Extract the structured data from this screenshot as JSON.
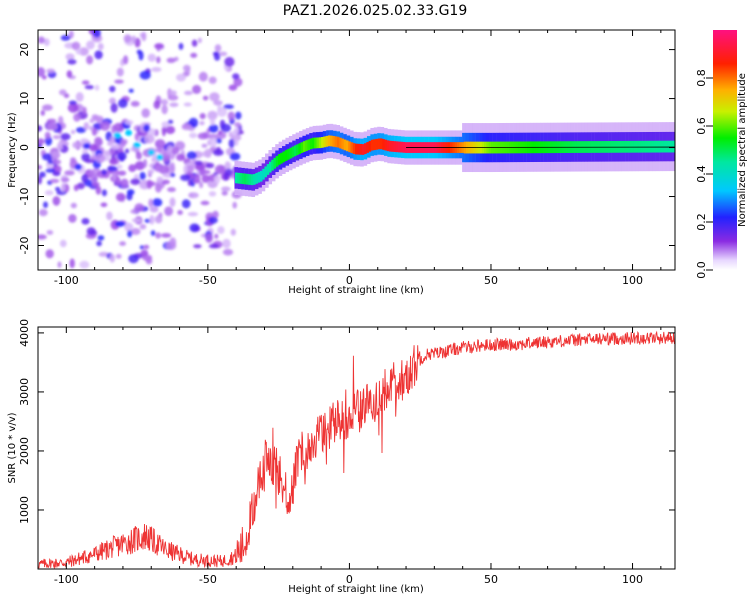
{
  "title": "PAZ1.2026.025.02.33.G19",
  "colors": {
    "snr_line": "#ee3333",
    "frame": "#000000"
  },
  "chart_data": [
    {
      "type": "heatmap",
      "title": "PAZ1.2026.025.02.33.G19",
      "xlabel": "Height of straight line (km)",
      "ylabel": "Frequency (Hz)",
      "xlim": [
        -110,
        115
      ],
      "ylim": [
        -25,
        24
      ],
      "xticks": [
        -100,
        -50,
        0,
        50,
        100
      ],
      "yticks": [
        20,
        10,
        0,
        -10,
        -20
      ],
      "xtick_labels": [
        "-100",
        "-50",
        "0",
        "50",
        "100"
      ],
      "ytick_labels": [
        "20",
        "10",
        "0",
        "-10",
        "-20"
      ],
      "colorbar": {
        "label": "Normalized spectral amplitude",
        "range": [
          0.0,
          1.0
        ],
        "ticks": [
          0.0,
          0.2,
          0.4,
          0.6,
          0.8
        ],
        "tick_labels": [
          "0.0",
          "0.2",
          "0.4",
          "0.6",
          "0.8"
        ],
        "colormap": "rainbow"
      },
      "ridge": {
        "x": [
          -40,
          -37,
          -34,
          -31,
          -28,
          -25,
          -22,
          -19,
          -16,
          -13,
          -10,
          -7,
          -4,
          -1,
          2,
          5,
          8,
          11,
          14,
          20,
          30,
          50,
          80,
          115
        ],
        "freq": [
          -6.2,
          -6.4,
          -6.6,
          -5.8,
          -4,
          -2.5,
          -1.5,
          -0.6,
          0.2,
          0.9,
          1,
          1.4,
          1.1,
          0.4,
          -0.3,
          -0.4,
          0.5,
          0.8,
          0.3,
          0,
          0,
          0,
          0.1,
          0.2
        ],
        "amp": [
          0.45,
          0.5,
          0.45,
          0.4,
          0.45,
          0.55,
          0.55,
          0.5,
          0.6,
          0.55,
          0.65,
          0.75,
          0.8,
          0.75,
          0.85,
          0.9,
          0.85,
          0.85,
          0.9,
          0.95,
          0.95,
          0.6,
          0.5,
          0.45
        ]
      }
    },
    {
      "type": "line",
      "xlabel": "Height of straight line (km)",
      "ylabel": "SNR (10 * v/v)",
      "xlim": [
        -110,
        115
      ],
      "ylim": [
        0,
        4100
      ],
      "xticks": [
        -100,
        -50,
        0,
        50,
        100
      ],
      "yticks": [
        1000,
        2000,
        3000,
        4000
      ],
      "xtick_labels": [
        "-100",
        "-50",
        "0",
        "50",
        "100"
      ],
      "ytick_labels": [
        "1000",
        "2000",
        "3000",
        "4000"
      ],
      "series": [
        {
          "name": "SNR",
          "color": "#ee3333",
          "x": [
            -110,
            -100,
            -90,
            -80,
            -72,
            -65,
            -55,
            -45,
            -40,
            -37,
            -35,
            -32,
            -30,
            -28,
            -26,
            -24,
            -22,
            -20,
            -18,
            -16,
            -14,
            -12,
            -10,
            -8,
            -6,
            -4,
            -2,
            0,
            2,
            4,
            6,
            8,
            10,
            12,
            14,
            16,
            18,
            20,
            22,
            24,
            26,
            28,
            30,
            35,
            40,
            45,
            50,
            60,
            70,
            80,
            90,
            100,
            115
          ],
          "y": [
            80,
            110,
            250,
            430,
            560,
            330,
            160,
            130,
            220,
            420,
            850,
            1400,
            1800,
            1900,
            1700,
            1500,
            1200,
            1400,
            1900,
            2000,
            2100,
            2200,
            2300,
            2400,
            2450,
            2500,
            2550,
            2600,
            2650,
            2700,
            2800,
            2900,
            2750,
            3000,
            3100,
            3150,
            3200,
            3250,
            3400,
            3500,
            3600,
            3650,
            3650,
            3700,
            3750,
            3780,
            3800,
            3810,
            3850,
            3880,
            3900,
            3910,
            3920
          ]
        }
      ]
    }
  ]
}
